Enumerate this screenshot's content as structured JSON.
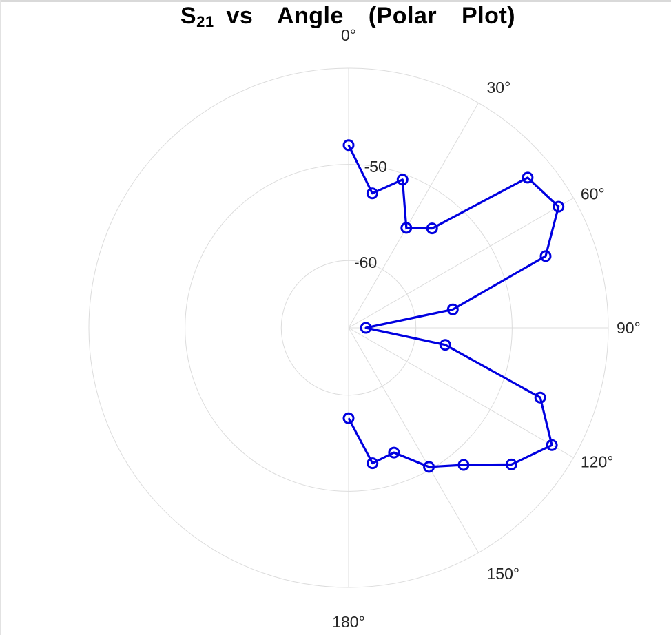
{
  "chart_data": {
    "type": "line",
    "subtype": "polar",
    "title_main": "S",
    "title_sub": "21",
    "title_rest": " vs  Angle  (Polar  Plot)",
    "theta_direction": "clockwise",
    "theta_zero": "top",
    "theta_span_deg": 180,
    "theta_ticks": [
      {
        "deg": 0,
        "label": "0°"
      },
      {
        "deg": 30,
        "label": "30°"
      },
      {
        "deg": 60,
        "label": "60°"
      },
      {
        "deg": 90,
        "label": "90°"
      },
      {
        "deg": 120,
        "label": "120°"
      },
      {
        "deg": 150,
        "label": "150°"
      },
      {
        "deg": 180,
        "label": "180°"
      }
    ],
    "rlim": [
      -67,
      -40
    ],
    "r_ticks": [
      -60,
      -50
    ],
    "r_tick_labels": [
      {
        "value": -60,
        "label": "-60"
      },
      {
        "value": -50,
        "label": "-50"
      }
    ],
    "grid": true,
    "series": [
      {
        "color": "#0000e0",
        "marker": "circle",
        "theta": [
          0,
          10,
          20,
          30,
          40,
          50,
          60,
          70,
          80,
          90,
          100,
          110,
          120,
          130,
          140,
          150,
          160,
          170,
          180
        ],
        "r": [
          -48.0,
          -52.8,
          -50.6,
          -55.0,
          -53.5,
          -42.7,
          -41.8,
          -45.2,
          -56.0,
          -65.2,
          -56.8,
          -45.8,
          -42.6,
          -44.9,
          -48.4,
          -50.3,
          -53.2,
          -52.7,
          -57.6
        ]
      }
    ]
  }
}
